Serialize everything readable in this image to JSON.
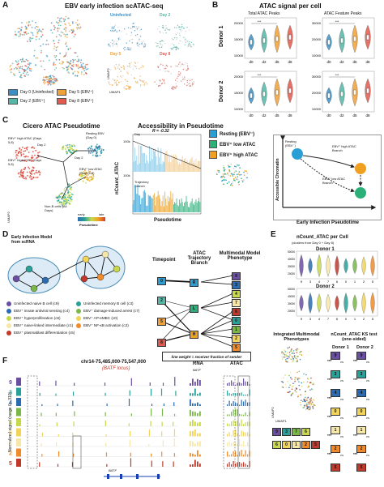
{
  "panelA": {
    "letter": "A",
    "title": "EBV early infection scATAC-seq",
    "umap": "UMAP2",
    "umap1": "UMAP1",
    "subtitles": [
      "Uninfected",
      "Day 2",
      "Day 5",
      "Day 8"
    ],
    "legend": [
      {
        "label": "Day 0 (Uninfected)",
        "color": "#3b8fc4"
      },
      {
        "label": "Day 5 (EBV⁺)",
        "color": "#f0a13a"
      },
      {
        "label": "Day 2 (EBV⁺)",
        "color": "#56b7a6"
      },
      {
        "label": "Day 8 (EBV⁺)",
        "color": "#e05a4f"
      }
    ]
  },
  "panelB": {
    "letter": "B",
    "title": "ATAC signal per cell",
    "col1": "Total ATAC Peaks",
    "col2": "ATAC Feature Peaks",
    "rows": [
      "Donor 1",
      "Donor 2"
    ],
    "xticks": [
      "d0",
      "d2",
      "d5",
      "d8"
    ],
    "yticks_left": [
      "10000",
      "15000",
      "20000"
    ],
    "yticks_right": [
      "10000",
      "20000",
      "30000"
    ],
    "sig": "***"
  },
  "panelC": {
    "letter": "C",
    "title1": "Cicero ATAC Pseudotime",
    "title2": "Accessibility in Pseudotime",
    "labels": [
      "Resting EBV (Day 0)",
      "EBV⁺ high ATAC (Days 5,8)",
      "EBV⁺ high ATAC (Days 5,8)",
      "EBV⁺ low ATAC (Days 5,8)",
      "Non-B cells (All Days)",
      "Day 2",
      "Day 2"
    ],
    "pseudotime": "Pseudotime",
    "early": "early",
    "late": "late",
    "r_value": "R = -0.32",
    "ylab": "nCount_ATAC",
    "yt1": "100k",
    "yt2": "100k",
    "day": "Day",
    "traj": "Trajectory Branch",
    "legend": [
      {
        "label": "Resting (EBV⁻)",
        "color": "#2a9fd6"
      },
      {
        "label": "EBV⁺ low ATAC",
        "color": "#2bb07a"
      },
      {
        "label": "EBV⁺ high ATAC",
        "color": "#f0a020"
      }
    ],
    "diag": {
      "resting": "Resting (EBV⁻)",
      "high": "EBV⁺ high ATAC Branch",
      "low": "EBV⁺ low ATAC Branch",
      "y": "Accessible Chromatin",
      "x": "Early Infection Pseudotime"
    }
  },
  "panelD": {
    "letter": "D",
    "title": "Early Infection Model from scRNA",
    "col1": "Timepoint",
    "col2": "ATAC Trajectory Branch",
    "col3": "Multimodal Model Phenotype",
    "states": [
      {
        "label": "Uninfected naive B cell (c9)",
        "color": "#6a4fa0"
      },
      {
        "label": "Uninfected memory B cell (c3)",
        "color": "#2aa198"
      },
      {
        "label": "EBV⁺ innate antiviral sensing (c4)",
        "color": "#2b6cb0"
      },
      {
        "label": "EBV⁺ damage-induced arrest (c7)",
        "color": "#7ab648"
      },
      {
        "label": "EBV⁺ hyperproliferation (c6)",
        "color": "#c7d94a"
      },
      {
        "label": "EBV⁺ AP-eMBC (c0)",
        "color": "#f2d45a"
      },
      {
        "label": "EBV⁺ naive-linked intermediate (c1)",
        "color": "#f6e7a8"
      },
      {
        "label": "EBV⁺ NF-κB activation (c2)",
        "color": "#f08a2a"
      },
      {
        "label": "EBV⁺ plasmablast differentiation (c5)",
        "color": "#c0392b"
      }
    ],
    "timepoints": [
      "0",
      "2",
      "5",
      "8"
    ],
    "branches": [
      "R",
      "L",
      "H"
    ],
    "phenotypes": [
      "9",
      "3",
      "4",
      "7",
      "6",
      "0",
      "1",
      "2",
      "5"
    ],
    "note": "line weight = receiver fraction of sender"
  },
  "panelE": {
    "letter": "E",
    "title": "nCount_ATAC per Cell",
    "subtitle": "(clusters from Day 0 + Day 8)",
    "donor1": "Donor 1",
    "donor2": "Donor 2",
    "yticks": [
      "50000",
      "45000",
      "40000",
      "35000",
      "30000",
      "25000",
      "20000",
      "15000"
    ],
    "xticks": [
      "9",
      "3",
      "4",
      "7",
      "6",
      "0",
      "1",
      "2",
      "5"
    ],
    "int_title": "Integrated Multimodal Phenotypes",
    "ks_title": "nCount_ATAC KS test (one-sided)",
    "d1": "Donor 1",
    "d2": "Donor 2",
    "vs": "vs",
    "umap2": "UMAP2",
    "umap1": "UMAP1",
    "ks_rows": [
      {
        "a": "9",
        "b": "4",
        "s1": "***",
        "s2": "***"
      },
      {
        "a": "3",
        "b": "4",
        "s1": "***",
        "s2": "***"
      },
      {
        "a": "4",
        "b": "0",
        "s1": "***",
        "s2": "***"
      },
      {
        "a": "0",
        "b": "1",
        "s1": "***",
        "s2": "***"
      },
      {
        "a": "1",
        "b": "2",
        "s1": "***",
        "s2": "***"
      },
      {
        "a": "2",
        "b": "5",
        "s1": "***",
        "s2": "***"
      },
      {
        "a": "5",
        "b": "5",
        "s1": "",
        "s2": ""
      }
    ],
    "bars_row1": [
      "9",
      "3",
      "7",
      "6"
    ],
    "bars_row2": [
      "6",
      "0",
      "1",
      "2",
      "5"
    ]
  },
  "panelF": {
    "letter": "F",
    "locus": "chr14-75,485,000-75,547,000",
    "gene": "(BATF locus)",
    "rna": "RNA",
    "atac": "ATAC",
    "batf": "BATF",
    "ylab": "Normalized signal (range 0 - 310)",
    "tracks": [
      {
        "id": "9",
        "color": "#6a4fa0"
      },
      {
        "id": "3",
        "color": "#2aa198"
      },
      {
        "id": "4",
        "color": "#2b6cb0"
      },
      {
        "id": "7",
        "color": "#7ab648"
      },
      {
        "id": "6",
        "color": "#c7d94a"
      },
      {
        "id": "0",
        "color": "#f2d45a"
      },
      {
        "id": "1",
        "color": "#f6e7a8"
      },
      {
        "id": "2",
        "color": "#f08a2a"
      },
      {
        "id": "5",
        "color": "#c0392b"
      }
    ]
  }
}
